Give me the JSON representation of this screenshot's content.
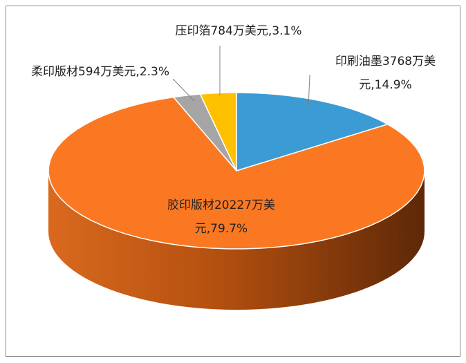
{
  "chart_data": {
    "type": "pie3d",
    "categories": [
      "印刷油墨",
      "胶印版材",
      "柔印版材",
      "压印箔"
    ],
    "values": [
      3768,
      20227,
      594,
      784
    ],
    "value_labels": [
      "印刷油墨3768万美元,14.9%",
      "胶印版材20227万美元,79.7%",
      "柔印版材594万美元,2.3%",
      "压印箔784万美元,3.1%"
    ],
    "colors": [
      "#3a9bd5",
      "#fb7822",
      "#a5a5a5",
      "#ffc000"
    ]
  }
}
